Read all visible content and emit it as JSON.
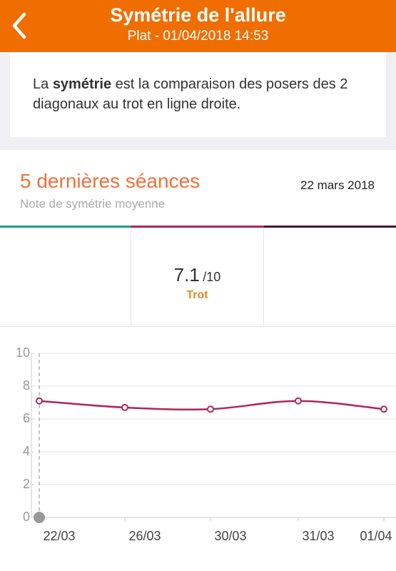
{
  "header": {
    "title": "Symétrie de l'allure",
    "subtitle": "Plat - 01/04/2018 14:53"
  },
  "info": {
    "before": "La",
    "bold": "symétrie",
    "after": "est la comparaison des posers des 2 diagonaux au trot en ligne droite."
  },
  "section": {
    "title": "5 dernières séances",
    "date": "22 mars 2018",
    "subtitle": "Note de symétrie moyenne"
  },
  "score": {
    "value": 7.1,
    "out_of": "/10",
    "label": "Trot"
  },
  "chart_data": {
    "type": "line",
    "categories": [
      "22/03",
      "26/03",
      "30/03",
      "31/03",
      "01/04"
    ],
    "values": [
      7.1,
      6.7,
      6.6,
      7.1,
      6.6
    ],
    "color": "#b0245f",
    "ylim": [
      0,
      10
    ],
    "yticks": [
      0,
      2,
      4,
      6,
      8,
      10
    ],
    "grid": true
  }
}
